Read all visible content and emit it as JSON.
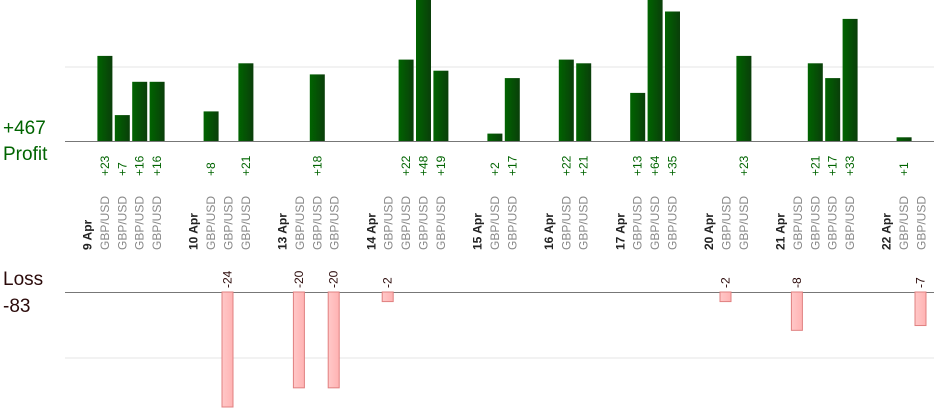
{
  "summary": {
    "profit_total": "+467",
    "profit_label": "Profit",
    "loss_label": "Loss",
    "loss_total": "-83"
  },
  "colors": {
    "profit_bar": "#006400",
    "profit_bar_dark": "#0a3e0a",
    "profit_text": "#006400",
    "loss_bar": "#ffb3b3",
    "loss_bar_border": "#e08080",
    "loss_text": "#2b0a0a",
    "date_text": "#222222",
    "pair_text": "#888888"
  },
  "chart_data": {
    "type": "bar",
    "profit_ylim": [
      0,
      40
    ],
    "loss_ylim": [
      0,
      24
    ],
    "days": [
      {
        "date": "9 Apr",
        "trades": [
          {
            "pair": "GBP/USD",
            "value": 23,
            "label": "+23"
          },
          {
            "pair": "GBP/USD",
            "value": 7,
            "label": "+7"
          },
          {
            "pair": "GBP/USD",
            "value": 16,
            "label": "+16"
          },
          {
            "pair": "GBP/USD",
            "value": 16,
            "label": "+16"
          }
        ]
      },
      {
        "date": "10 Apr",
        "trades": [
          {
            "pair": "GBP/USD",
            "value": 8,
            "label": "+8"
          },
          {
            "pair": "GBP/USD",
            "value": -24,
            "label": "-24"
          },
          {
            "pair": "GBP/USD",
            "value": 21,
            "label": "+21"
          }
        ]
      },
      {
        "date": "13 Apr",
        "trades": [
          {
            "pair": "GBP/USD",
            "value": -20,
            "label": "-20"
          },
          {
            "pair": "GBP/USD",
            "value": 18,
            "label": "+18"
          },
          {
            "pair": "GBP/USD",
            "value": -20,
            "label": "-20"
          }
        ]
      },
      {
        "date": "14 Apr",
        "trades": [
          {
            "pair": "GBP/USD",
            "value": -2,
            "label": "-2"
          },
          {
            "pair": "GBP/USD",
            "value": 22,
            "label": "+22"
          },
          {
            "pair": "GBP/USD",
            "value": 48,
            "label": "+48"
          },
          {
            "pair": "GBP/USD",
            "value": 19,
            "label": "+19"
          }
        ]
      },
      {
        "date": "15 Apr",
        "trades": [
          {
            "pair": "GBP/USD",
            "value": 2,
            "label": "+2"
          },
          {
            "pair": "GBP/USD",
            "value": 17,
            "label": "+17"
          }
        ]
      },
      {
        "date": "16 Apr",
        "trades": [
          {
            "pair": "GBP/USD",
            "value": 22,
            "label": "+22"
          },
          {
            "pair": "GBP/USD",
            "value": 21,
            "label": "+21"
          }
        ]
      },
      {
        "date": "17 Apr",
        "trades": [
          {
            "pair": "GBP/USD",
            "value": 13,
            "label": "+13"
          },
          {
            "pair": "GBP/USD",
            "value": 64,
            "label": "+64"
          },
          {
            "pair": "GBP/USD",
            "value": 35,
            "label": "+35"
          }
        ]
      },
      {
        "date": "20 Apr",
        "trades": [
          {
            "pair": "GBP/USD",
            "value": -2,
            "label": "-2"
          },
          {
            "pair": "GBP/USD",
            "value": 23,
            "label": "+23"
          }
        ]
      },
      {
        "date": "21 Apr",
        "trades": [
          {
            "pair": "GBP/USD",
            "value": -8,
            "label": "-8"
          },
          {
            "pair": "GBP/USD",
            "value": 21,
            "label": "+21"
          },
          {
            "pair": "GBP/USD",
            "value": 17,
            "label": "+17"
          },
          {
            "pair": "GBP/USD",
            "value": 33,
            "label": "+33"
          }
        ]
      },
      {
        "date": "22 Apr",
        "trades": [
          {
            "pair": "GBP/USD",
            "value": 1,
            "label": "+1"
          },
          {
            "pair": "GBP/USD",
            "value": -7,
            "label": "-7"
          }
        ]
      }
    ]
  }
}
